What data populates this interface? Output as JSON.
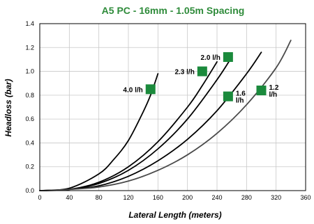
{
  "chart_data": {
    "type": "line",
    "title": "A5 PC - 16mm - 1.05m Spacing",
    "xlabel": "Lateral Length (meters)",
    "ylabel": "Headloss (bar)",
    "xlim": [
      0,
      360
    ],
    "ylim": [
      0,
      1.4
    ],
    "x_ticks": [
      "0",
      "40",
      "80",
      "120",
      "160",
      "200",
      "240",
      "280",
      "320",
      "360"
    ],
    "y_ticks": [
      "0.0",
      "0.2",
      "0.4",
      "0.6",
      "0.8",
      "1.0",
      "1.2",
      "1.4"
    ],
    "grid": true,
    "legend": "none",
    "marker_color": "#1b8a3c",
    "series": [
      {
        "name": "4.0 l/h",
        "label_lines": [
          "4.0 l/h"
        ],
        "color": "#000000",
        "label_at": [
          150,
          0.85
        ],
        "x": [
          0,
          40,
          80,
          100,
          120,
          140,
          150,
          160
        ],
        "y": [
          0,
          0.02,
          0.14,
          0.26,
          0.42,
          0.66,
          0.8,
          0.98
        ]
      },
      {
        "name": "2.3 l/h",
        "label_lines": [
          "2.3 l/h"
        ],
        "color": "#000000",
        "label_at": [
          220,
          1.0
        ],
        "x": [
          0,
          40,
          80,
          120,
          160,
          200,
          220,
          240
        ],
        "y": [
          0,
          0.01,
          0.07,
          0.2,
          0.41,
          0.7,
          0.88,
          1.08
        ]
      },
      {
        "name": "2.0 l/h",
        "label_lines": [
          "2.0 l/h"
        ],
        "color": "#000000",
        "label_at": [
          255,
          1.12
        ],
        "x": [
          0,
          40,
          80,
          120,
          160,
          200,
          240,
          260
        ],
        "y": [
          0,
          0.01,
          0.06,
          0.17,
          0.35,
          0.6,
          0.93,
          1.12
        ]
      },
      {
        "name": "1.6 l/h",
        "label_lines": [
          "1.6",
          "l/h"
        ],
        "color": "#000000",
        "label_at": [
          255,
          0.79
        ],
        "x": [
          0,
          40,
          80,
          120,
          160,
          200,
          240,
          280,
          300
        ],
        "y": [
          0,
          0.01,
          0.04,
          0.12,
          0.25,
          0.43,
          0.67,
          0.98,
          1.16
        ]
      },
      {
        "name": "1.2 l/h",
        "label_lines": [
          "1.2",
          "l/h"
        ],
        "color": "#4a4a4a",
        "label_at": [
          300,
          0.84
        ],
        "x": [
          0,
          40,
          80,
          120,
          160,
          200,
          240,
          280,
          320,
          340
        ],
        "y": [
          0,
          0.01,
          0.03,
          0.08,
          0.17,
          0.3,
          0.48,
          0.72,
          1.03,
          1.26
        ]
      }
    ]
  }
}
